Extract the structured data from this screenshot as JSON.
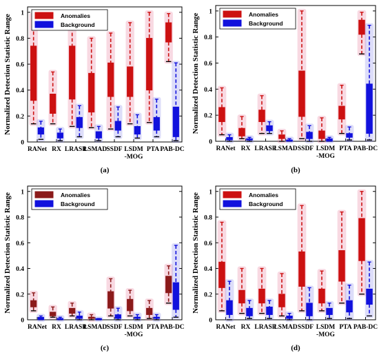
{
  "chart_data": [
    {
      "type": "box",
      "panel_label": "(a)",
      "ylabel": "Normalized Detection Statistic Range",
      "ylim": [
        0,
        1
      ],
      "yticks": [
        "0",
        "0.2",
        "0.4",
        "0.6",
        "0.8",
        "1"
      ],
      "categories": [
        "RANet",
        "RX",
        "LRASR",
        "LSMAD",
        "SSDF",
        "LSDM\n-MOG",
        "PTA",
        "PAB-DC"
      ],
      "legend": [
        {
          "name": "Anomalies",
          "color": "#cc1111"
        },
        {
          "name": "Background",
          "color": "#1111dd"
        }
      ],
      "series": [
        {
          "name": "Anomalies",
          "boxes": [
            {
              "min": 0.14,
              "q1": 0.32,
              "median": 0.41,
              "q3": 0.74,
              "max": 0.98
            },
            {
              "min": 0.14,
              "q1": 0.22,
              "median": 0.27,
              "q3": 0.37,
              "max": 0.54
            },
            {
              "min": 0.12,
              "q1": 0.33,
              "median": 0.4,
              "q3": 0.74,
              "max": 0.97
            },
            {
              "min": 0.11,
              "q1": 0.23,
              "median": 0.29,
              "q3": 0.53,
              "max": 0.8
            },
            {
              "min": 0.1,
              "q1": 0.35,
              "median": 0.43,
              "q3": 0.61,
              "max": 0.84
            },
            {
              "min": 0.14,
              "q1": 0.35,
              "median": 0.44,
              "q3": 0.58,
              "max": 0.92
            },
            {
              "min": 0.15,
              "q1": 0.4,
              "median": 0.49,
              "q3": 0.8,
              "max": 1.0
            },
            {
              "min": 0.62,
              "q1": 0.77,
              "median": 0.82,
              "q3": 0.92,
              "max": 0.99
            }
          ]
        },
        {
          "name": "Background",
          "boxes": [
            {
              "min": 0.02,
              "q1": 0.06,
              "median": 0.08,
              "q3": 0.11,
              "max": 0.16
            },
            {
              "min": 0.01,
              "q1": 0.03,
              "median": 0.05,
              "q3": 0.07,
              "max": 0.1
            },
            {
              "min": 0.04,
              "q1": 0.11,
              "median": 0.14,
              "q3": 0.19,
              "max": 0.28
            },
            {
              "min": 0.01,
              "q1": 0.03,
              "median": 0.05,
              "q3": 0.08,
              "max": 0.12
            },
            {
              "min": 0.04,
              "q1": 0.09,
              "median": 0.12,
              "q3": 0.16,
              "max": 0.27
            },
            {
              "min": 0.03,
              "q1": 0.06,
              "median": 0.09,
              "q3": 0.12,
              "max": 0.21
            },
            {
              "min": 0.04,
              "q1": 0.09,
              "median": 0.13,
              "q3": 0.19,
              "max": 0.33
            },
            {
              "min": 0.01,
              "q1": 0.04,
              "median": 0.11,
              "q3": 0.27,
              "max": 0.61
            }
          ]
        }
      ]
    },
    {
      "type": "box",
      "panel_label": "(b)",
      "ylabel": "Normalized Detection Statistic Range",
      "ylim": [
        0,
        1
      ],
      "yticks": [
        "0",
        "0.2",
        "0.4",
        "0.6",
        "0.8",
        "1"
      ],
      "categories": [
        "RANet",
        "RX",
        "LRASR",
        "LSMAD",
        "SSDF",
        "LSDM\n-MOG",
        "PTA",
        "PAB-DC"
      ],
      "legend": [
        {
          "name": "Anomalies",
          "color": "#cc1111"
        },
        {
          "name": "Background",
          "color": "#1111dd"
        }
      ],
      "series": [
        {
          "name": "Anomalies",
          "boxes": [
            {
              "min": 0.05,
              "q1": 0.15,
              "median": 0.2,
              "q3": 0.26,
              "max": 0.41
            },
            {
              "min": 0.02,
              "q1": 0.04,
              "median": 0.07,
              "q3": 0.1,
              "max": 0.19
            },
            {
              "min": 0.06,
              "q1": 0.15,
              "median": 0.19,
              "q3": 0.24,
              "max": 0.35
            },
            {
              "min": 0.0,
              "q1": 0.02,
              "median": 0.03,
              "q3": 0.05,
              "max": 0.08
            },
            {
              "min": 0.02,
              "q1": 0.19,
              "median": 0.26,
              "q3": 0.54,
              "max": 1.0
            },
            {
              "min": 0.0,
              "q1": 0.02,
              "median": 0.04,
              "q3": 0.08,
              "max": 0.18
            },
            {
              "min": 0.06,
              "q1": 0.17,
              "median": 0.22,
              "q3": 0.27,
              "max": 0.43
            },
            {
              "min": 0.67,
              "q1": 0.82,
              "median": 0.88,
              "q3": 0.93,
              "max": 0.99
            }
          ]
        },
        {
          "name": "Background",
          "boxes": [
            {
              "min": 0.0,
              "q1": 0.01,
              "median": 0.02,
              "q3": 0.03,
              "max": 0.05
            },
            {
              "min": 0.0,
              "q1": 0.01,
              "median": 0.01,
              "q3": 0.02,
              "max": 0.03
            },
            {
              "min": 0.06,
              "q1": 0.08,
              "median": 0.1,
              "q3": 0.12,
              "max": 0.15
            },
            {
              "min": 0.0,
              "q1": 0.0,
              "median": 0.01,
              "q3": 0.01,
              "max": 0.02
            },
            {
              "min": 0.0,
              "q1": 0.02,
              "median": 0.04,
              "q3": 0.07,
              "max": 0.12
            },
            {
              "min": 0.0,
              "q1": 0.0,
              "median": 0.01,
              "q3": 0.02,
              "max": 0.03
            },
            {
              "min": 0.01,
              "q1": 0.03,
              "median": 0.04,
              "q3": 0.06,
              "max": 0.11
            },
            {
              "min": 0.01,
              "q1": 0.06,
              "median": 0.22,
              "q3": 0.44,
              "max": 0.89
            }
          ]
        }
      ]
    },
    {
      "type": "box",
      "panel_label": "(c)",
      "ylabel": "Normalized Detection Statistic Range",
      "ylim": [
        0,
        1
      ],
      "yticks": [
        "0",
        "0.2",
        "0.4",
        "0.6",
        "0.8",
        "1"
      ],
      "categories": [
        "RANet",
        "RX",
        "LRASR",
        "LSMAD",
        "SSDF",
        "LSDM\n-MOG",
        "PTA",
        "PAB-DC"
      ],
      "legend": [
        {
          "name": "Anomalies",
          "color": "#8b1a1a"
        },
        {
          "name": "Background",
          "color": "#1111dd"
        }
      ],
      "series": [
        {
          "name": "Anomalies",
          "boxes": [
            {
              "min": 0.07,
              "q1": 0.1,
              "median": 0.12,
              "q3": 0.15,
              "max": 0.21
            },
            {
              "min": 0.02,
              "q1": 0.03,
              "median": 0.05,
              "q3": 0.06,
              "max": 0.1
            },
            {
              "min": 0.03,
              "q1": 0.05,
              "median": 0.07,
              "q3": 0.09,
              "max": 0.13
            },
            {
              "min": 0.0,
              "q1": 0.01,
              "median": 0.02,
              "q3": 0.02,
              "max": 0.04
            },
            {
              "min": 0.03,
              "q1": 0.09,
              "median": 0.12,
              "q3": 0.22,
              "max": 0.32
            },
            {
              "min": 0.03,
              "q1": 0.07,
              "median": 0.1,
              "q3": 0.16,
              "max": 0.23
            },
            {
              "min": 0.01,
              "q1": 0.04,
              "median": 0.06,
              "q3": 0.09,
              "max": 0.15
            },
            {
              "min": 0.13,
              "q1": 0.21,
              "median": 0.25,
              "q3": 0.34,
              "max": 0.42
            }
          ]
        },
        {
          "name": "Background",
          "boxes": [
            {
              "min": 0.0,
              "q1": 0.0,
              "median": 0.01,
              "q3": 0.02,
              "max": 0.03
            },
            {
              "min": 0.0,
              "q1": 0.0,
              "median": 0.01,
              "q3": 0.01,
              "max": 0.02
            },
            {
              "min": 0.0,
              "q1": 0.01,
              "median": 0.02,
              "q3": 0.03,
              "max": 0.06
            },
            {
              "min": 0.0,
              "q1": 0.0,
              "median": 0.0,
              "q3": 0.01,
              "max": 0.01
            },
            {
              "min": 0.0,
              "q1": 0.01,
              "median": 0.02,
              "q3": 0.04,
              "max": 0.09
            },
            {
              "min": 0.0,
              "q1": 0.01,
              "median": 0.02,
              "q3": 0.02,
              "max": 0.04
            },
            {
              "min": 0.0,
              "q1": 0.01,
              "median": 0.02,
              "q3": 0.02,
              "max": 0.04
            },
            {
              "min": 0.02,
              "q1": 0.08,
              "median": 0.16,
              "q3": 0.29,
              "max": 0.58
            }
          ]
        }
      ]
    },
    {
      "type": "box",
      "panel_label": "(d)",
      "ylabel": "Normalized Detection Statistic Range",
      "ylim": [
        0,
        1
      ],
      "yticks": [
        "0",
        "0.2",
        "0.4",
        "0.6",
        "0.8",
        "1"
      ],
      "categories": [
        "RANet",
        "RX",
        "LRASR",
        "LSMAD",
        "SSDF",
        "LSDM\n-MOG",
        "PTA",
        "PAB-DC"
      ],
      "legend": [
        {
          "name": "Anomalies",
          "color": "#cc1111"
        },
        {
          "name": "Background",
          "color": "#1111dd"
        }
      ],
      "series": [
        {
          "name": "Anomalies",
          "boxes": [
            {
              "min": 0.07,
              "q1": 0.25,
              "median": 0.33,
              "q3": 0.45,
              "max": 0.76
            },
            {
              "min": 0.05,
              "q1": 0.13,
              "median": 0.18,
              "q3": 0.23,
              "max": 0.4
            },
            {
              "min": 0.05,
              "q1": 0.13,
              "median": 0.18,
              "q3": 0.24,
              "max": 0.4
            },
            {
              "min": 0.03,
              "q1": 0.1,
              "median": 0.14,
              "q3": 0.2,
              "max": 0.36
            },
            {
              "min": 0.07,
              "q1": 0.26,
              "median": 0.35,
              "q3": 0.53,
              "max": 0.89
            },
            {
              "min": 0.07,
              "q1": 0.13,
              "median": 0.18,
              "q3": 0.24,
              "max": 0.38
            },
            {
              "min": 0.13,
              "q1": 0.3,
              "median": 0.39,
              "q3": 0.54,
              "max": 0.84
            },
            {
              "min": 0.2,
              "q1": 0.46,
              "median": 0.57,
              "q3": 0.79,
              "max": 1.0
            }
          ]
        },
        {
          "name": "Background",
          "boxes": [
            {
              "min": 0.0,
              "q1": 0.04,
              "median": 0.08,
              "q3": 0.15,
              "max": 0.3
            },
            {
              "min": 0.01,
              "q1": 0.03,
              "median": 0.06,
              "q3": 0.09,
              "max": 0.15
            },
            {
              "min": 0.01,
              "q1": 0.04,
              "median": 0.07,
              "q3": 0.1,
              "max": 0.15
            },
            {
              "min": 0.0,
              "q1": 0.01,
              "median": 0.02,
              "q3": 0.03,
              "max": 0.05
            },
            {
              "min": 0.0,
              "q1": 0.03,
              "median": 0.07,
              "q3": 0.13,
              "max": 0.25
            },
            {
              "min": 0.01,
              "q1": 0.04,
              "median": 0.07,
              "q3": 0.09,
              "max": 0.13
            },
            {
              "min": 0.01,
              "q1": 0.06,
              "median": 0.1,
              "q3": 0.15,
              "max": 0.27
            },
            {
              "min": 0.03,
              "q1": 0.12,
              "median": 0.18,
              "q3": 0.24,
              "max": 0.45
            }
          ]
        }
      ]
    }
  ]
}
